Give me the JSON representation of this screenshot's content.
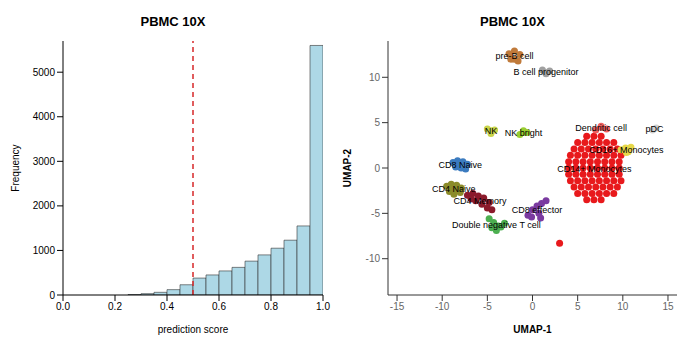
{
  "chart_data": [
    {
      "type": "histogram",
      "title": "PBMC 10X",
      "x_label": "prediction score",
      "y_label": "Frequency",
      "bins": [
        0.25,
        0.3,
        0.35,
        0.4,
        0.45,
        0.5,
        0.55,
        0.6,
        0.65,
        0.7,
        0.75,
        0.8,
        0.85,
        0.9,
        0.95,
        1.0
      ],
      "counts": [
        10,
        30,
        60,
        120,
        230,
        380,
        450,
        540,
        620,
        760,
        900,
        1050,
        1230,
        1550,
        5600
      ],
      "color": "#add8e6",
      "xlim": [
        0,
        1
      ],
      "ylim": [
        0,
        5700
      ],
      "xticks": [
        {
          "value": 0,
          "label": "0.0"
        },
        0.2,
        0.4,
        0.6,
        0.8,
        {
          "value": 1,
          "label": "1.0"
        }
      ],
      "yticks": [
        0,
        1000,
        2000,
        3000,
        4000,
        5000
      ],
      "vline": {
        "value": 0.5,
        "color": "#d62728",
        "line_style": "dashed"
      }
    },
    {
      "type": "scatter",
      "title": "PBMC 10X",
      "x_label": "UMAP-1",
      "y_label": "UMAP-2",
      "xlim": [
        -16,
        16
      ],
      "ylim": [
        -14,
        14
      ],
      "xticks": [
        -15,
        -10,
        -5,
        0,
        5,
        10,
        15
      ],
      "yticks": [
        -10,
        -5,
        0,
        5,
        10
      ],
      "series": [
        {
          "name": "CD14+ Monocytes",
          "color": "#e8191c",
          "x": [
            6.0,
            6.8,
            7.6,
            5.0,
            5.8,
            6.6,
            7.4,
            8.2,
            9.0,
            4.6,
            5.4,
            6.2,
            7.0,
            7.8,
            8.6,
            9.4,
            4.2,
            5.0,
            5.8,
            6.6,
            7.4,
            8.2,
            9.0,
            9.8,
            4.0,
            4.8,
            5.6,
            6.4,
            7.2,
            8.0,
            8.8,
            9.6,
            4.0,
            4.8,
            5.6,
            6.4,
            7.2,
            8.0,
            8.8,
            9.6,
            4.0,
            4.8,
            5.6,
            6.4,
            7.2,
            8.0,
            8.8,
            9.6,
            4.2,
            5.0,
            5.8,
            6.6,
            7.4,
            8.2,
            9.0,
            9.8,
            4.6,
            5.4,
            6.2,
            7.0,
            7.8,
            8.6,
            9.4,
            5.0,
            5.8,
            6.6,
            7.4,
            8.2,
            9.0,
            6.0,
            6.8,
            7.6,
            3.0
          ],
          "y": [
            3.5,
            3.5,
            3.5,
            2.8,
            2.8,
            2.8,
            2.8,
            2.8,
            2.8,
            2.1,
            2.1,
            2.1,
            2.1,
            2.1,
            2.1,
            2.1,
            1.4,
            1.4,
            1.4,
            1.4,
            1.4,
            1.4,
            1.4,
            1.4,
            0.7,
            0.7,
            0.7,
            0.7,
            0.7,
            0.7,
            0.7,
            0.7,
            0,
            0,
            0,
            0,
            0,
            0,
            0,
            0,
            -0.7,
            -0.7,
            -0.7,
            -0.7,
            -0.7,
            -0.7,
            -0.7,
            -0.7,
            -1.4,
            -1.4,
            -1.4,
            -1.4,
            -1.4,
            -1.4,
            -1.4,
            -1.4,
            -2.1,
            -2.1,
            -2.1,
            -2.1,
            -2.1,
            -2.1,
            -2.1,
            -2.8,
            -2.8,
            -2.8,
            -2.8,
            -2.8,
            -2.8,
            -3.5,
            -3.5,
            -3.5,
            -8.3
          ]
        },
        {
          "name": "CD16+ Monocytes",
          "color": "#e6d84a",
          "x": [
            9.8,
            10.3,
            10.6,
            10.9,
            10.4
          ],
          "y": [
            2.0,
            2.2,
            1.8,
            2.3,
            1.7
          ]
        },
        {
          "name": "Dendritic cell",
          "color": "#f06060",
          "x": [
            7.0,
            7.6,
            8.2,
            7.6
          ],
          "y": [
            4.2,
            4.6,
            4.3,
            4.5
          ]
        },
        {
          "name": "pDC",
          "color": "#d0d0d0",
          "x": [
            13.3,
            13.7
          ],
          "y": [
            4.2,
            4.4
          ]
        },
        {
          "name": "CD8 Naive",
          "color": "#3b7bbf",
          "x": [
            -8.8,
            -8.3,
            -7.7,
            -7.2,
            -8.5,
            -7.9,
            -7.4,
            -8.1
          ],
          "y": [
            0.6,
            0.8,
            0.7,
            0.4,
            0.1,
            0.0,
            -0.1,
            0.3
          ]
        },
        {
          "name": "CD4 Naive",
          "color": "#8b8b2a",
          "x": [
            -9.5,
            -9.0,
            -8.4,
            -7.9,
            -9.2,
            -8.6,
            -8.0,
            -8.7,
            -9.1
          ],
          "y": [
            -2.0,
            -1.8,
            -1.9,
            -2.2,
            -2.6,
            -2.5,
            -2.7,
            -2.9,
            -2.3
          ]
        },
        {
          "name": "CD4 Memory",
          "color": "#8b1a2b",
          "x": [
            -7.2,
            -6.6,
            -6.0,
            -5.4,
            -4.8,
            -6.3,
            -5.6,
            -5.0,
            -6.8,
            -4.5
          ],
          "y": [
            -3.0,
            -2.8,
            -3.1,
            -3.3,
            -3.8,
            -3.6,
            -4.0,
            -4.4,
            -3.4,
            -4.6
          ]
        },
        {
          "name": "CD8 effector",
          "color": "#7a3aa0",
          "x": [
            -0.5,
            0.0,
            0.5,
            1.0,
            1.5,
            -0.1,
            0.7,
            0.9
          ],
          "y": [
            -5.2,
            -4.6,
            -4.2,
            -3.9,
            -3.6,
            -5.4,
            -5.0,
            -5.5
          ]
        },
        {
          "name": "Double negative T cell",
          "color": "#4caf50",
          "x": [
            -4.8,
            -4.3,
            -3.8,
            -4.0,
            -3.5,
            -4.5,
            -3.1
          ],
          "y": [
            -5.6,
            -6.0,
            -6.4,
            -6.9,
            -6.5,
            -6.6,
            -6.1
          ]
        },
        {
          "name": "NK",
          "color": "#c8d44a",
          "x": [
            -5.0,
            -4.6,
            -4.2,
            -4.6
          ],
          "y": [
            4.3,
            3.8,
            4.2,
            4.1
          ]
        },
        {
          "name": "NK bright",
          "color": "#9acd32",
          "x": [
            -1.4,
            -1.0,
            -0.6,
            -1.0
          ],
          "y": [
            3.7,
            4.1,
            3.9,
            3.9
          ]
        },
        {
          "name": "pre-B cell",
          "color": "#c07a3a",
          "x": [
            -2.6,
            -2.0,
            -1.4,
            -2.4,
            -1.6,
            -2.0
          ],
          "y": [
            12.6,
            12.9,
            12.5,
            12.0,
            11.8,
            12.0
          ]
        },
        {
          "name": "B cell progenitor",
          "color": "#a0a0a0",
          "x": [
            1.1,
            1.5,
            1.9,
            1.5
          ],
          "y": [
            10.8,
            10.4,
            10.7,
            10.5
          ]
        }
      ]
    }
  ]
}
